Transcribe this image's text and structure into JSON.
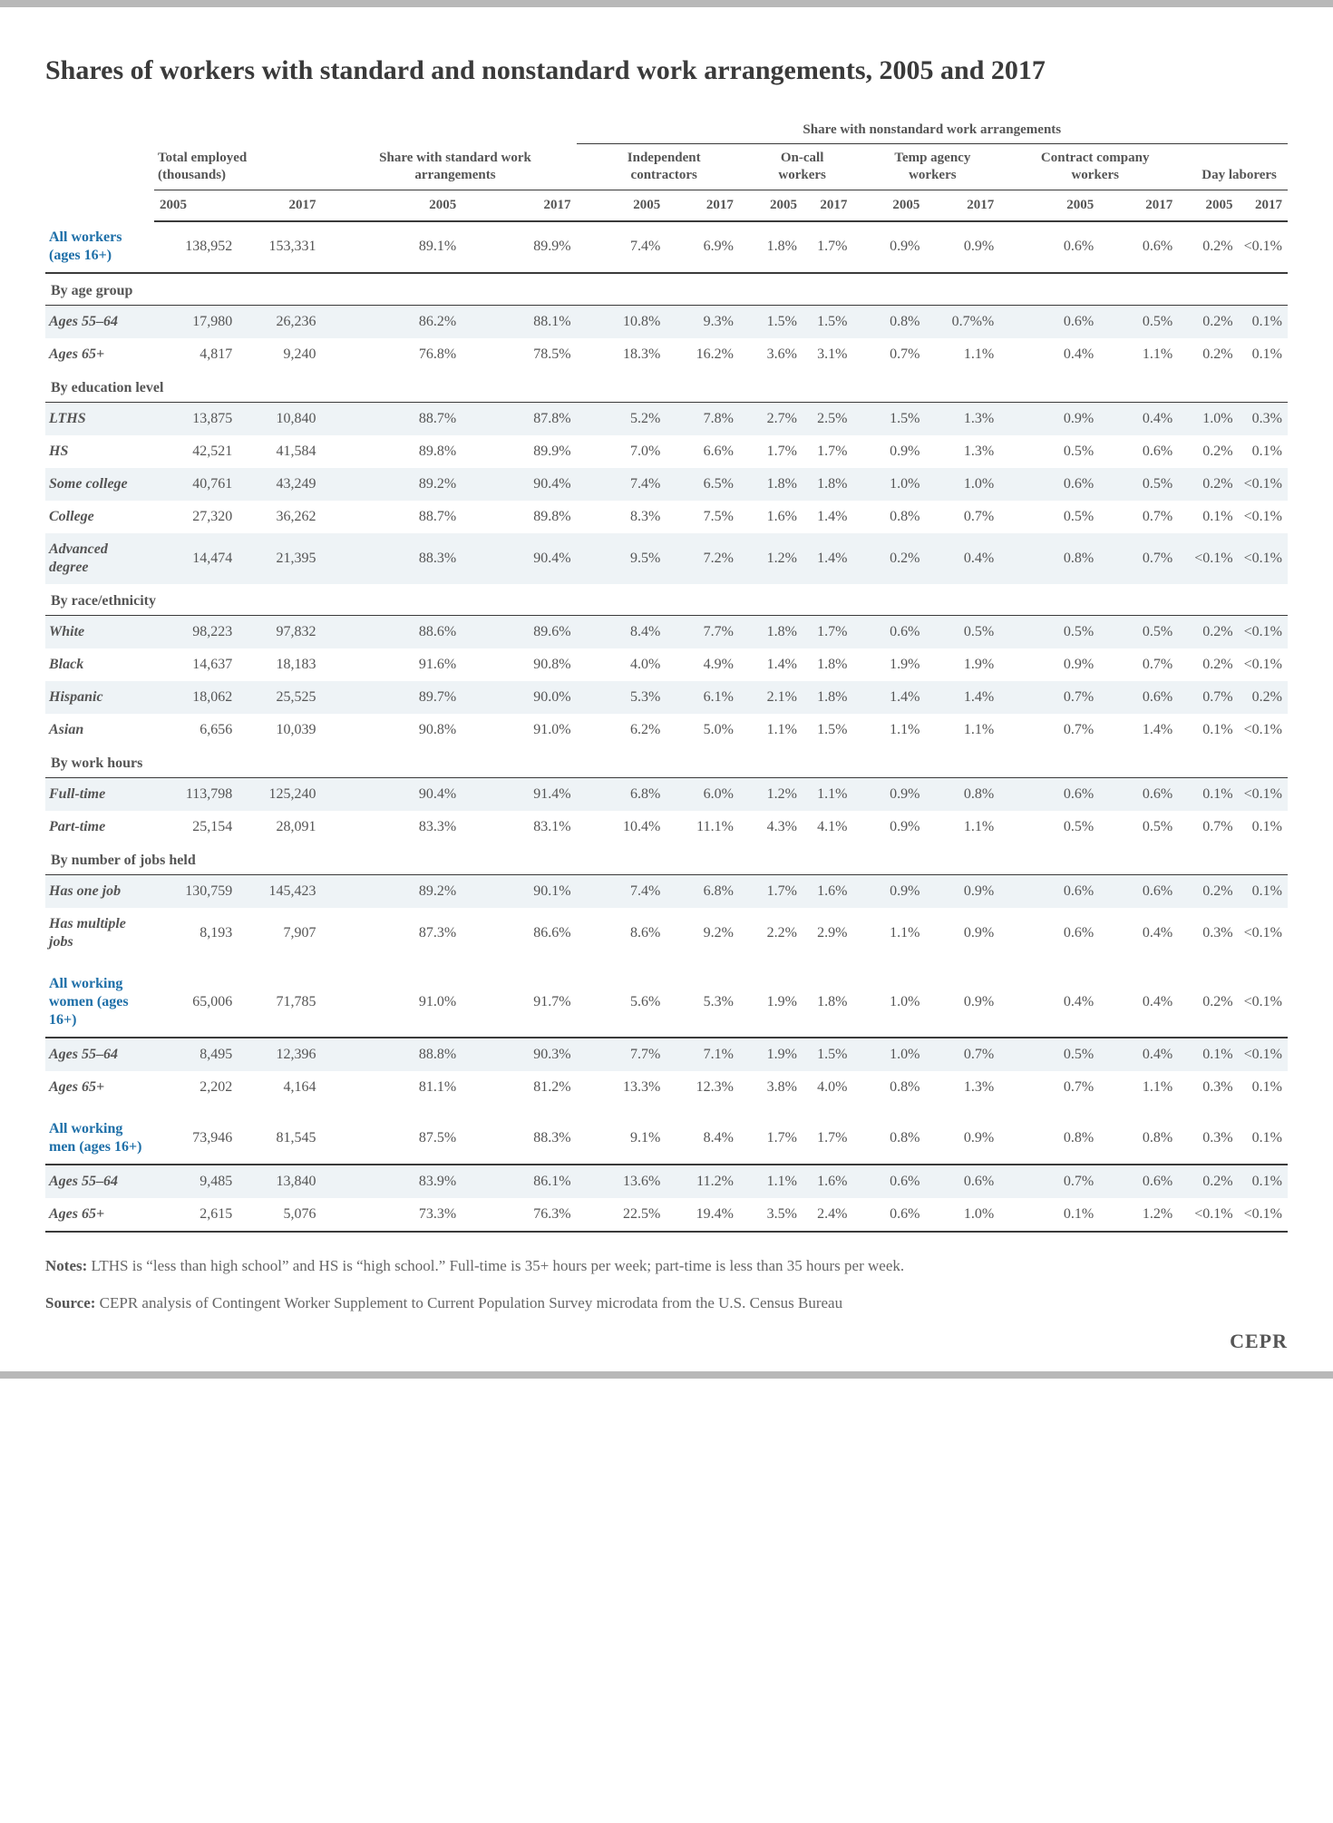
{
  "title": "Shares of workers with standard and nonstandard work arrangements, 2005 and 2017",
  "super_header": "Share with nonstandard work arrangements",
  "groups": [
    {
      "label": "Total employed (thousands)"
    },
    {
      "label": "Share with standard work arrangements"
    },
    {
      "label": "Independent contractors"
    },
    {
      "label": "On-call workers"
    },
    {
      "label": "Temp agency workers"
    },
    {
      "label": "Contract company workers"
    },
    {
      "label": "Day laborers"
    }
  ],
  "years": [
    "2005",
    "2017"
  ],
  "rows": [
    {
      "type": "highlight",
      "label": "All workers (ages 16+)",
      "v": [
        "138,952",
        "153,331",
        "89.1%",
        "89.9%",
        "7.4%",
        "6.9%",
        "1.8%",
        "1.7%",
        "0.9%",
        "0.9%",
        "0.6%",
        "0.6%",
        "0.2%",
        "<0.1%"
      ],
      "shade": false
    },
    {
      "type": "section",
      "label": "By age group"
    },
    {
      "type": "data",
      "label": "Ages 55–64",
      "v": [
        "17,980",
        "26,236",
        "86.2%",
        "88.1%",
        "10.8%",
        "9.3%",
        "1.5%",
        "1.5%",
        "0.8%",
        "0.7%%",
        "0.6%",
        "0.5%",
        "0.2%",
        "0.1%"
      ],
      "shade": true
    },
    {
      "type": "data",
      "label": "Ages 65+",
      "v": [
        "4,817",
        "9,240",
        "76.8%",
        "78.5%",
        "18.3%",
        "16.2%",
        "3.6%",
        "3.1%",
        "0.7%",
        "1.1%",
        "0.4%",
        "1.1%",
        "0.2%",
        "0.1%"
      ],
      "shade": false
    },
    {
      "type": "section",
      "label": "By education level"
    },
    {
      "type": "data",
      "label": "LTHS",
      "v": [
        "13,875",
        "10,840",
        "88.7%",
        "87.8%",
        "5.2%",
        "7.8%",
        "2.7%",
        "2.5%",
        "1.5%",
        "1.3%",
        "0.9%",
        "0.4%",
        "1.0%",
        "0.3%"
      ],
      "shade": true
    },
    {
      "type": "data",
      "label": "HS",
      "v": [
        "42,521",
        "41,584",
        "89.8%",
        "89.9%",
        "7.0%",
        "6.6%",
        "1.7%",
        "1.7%",
        "0.9%",
        "1.3%",
        "0.5%",
        "0.6%",
        "0.2%",
        "0.1%"
      ],
      "shade": false
    },
    {
      "type": "data",
      "label": "Some college",
      "v": [
        "40,761",
        "43,249",
        "89.2%",
        "90.4%",
        "7.4%",
        "6.5%",
        "1.8%",
        "1.8%",
        "1.0%",
        "1.0%",
        "0.6%",
        "0.5%",
        "0.2%",
        "<0.1%"
      ],
      "shade": true
    },
    {
      "type": "data",
      "label": "College",
      "v": [
        "27,320",
        "36,262",
        "88.7%",
        "89.8%",
        "8.3%",
        "7.5%",
        "1.6%",
        "1.4%",
        "0.8%",
        "0.7%",
        "0.5%",
        "0.7%",
        "0.1%",
        "<0.1%"
      ],
      "shade": false
    },
    {
      "type": "data",
      "label": "Advanced degree",
      "v": [
        "14,474",
        "21,395",
        "88.3%",
        "90.4%",
        "9.5%",
        "7.2%",
        "1.2%",
        "1.4%",
        "0.2%",
        "0.4%",
        "0.8%",
        "0.7%",
        "<0.1%",
        "<0.1%"
      ],
      "shade": true
    },
    {
      "type": "section",
      "label": "By race/ethnicity"
    },
    {
      "type": "data",
      "label": "White",
      "v": [
        "98,223",
        "97,832",
        "88.6%",
        "89.6%",
        "8.4%",
        "7.7%",
        "1.8%",
        "1.7%",
        "0.6%",
        "0.5%",
        "0.5%",
        "0.5%",
        "0.2%",
        "<0.1%"
      ],
      "shade": true
    },
    {
      "type": "data",
      "label": "Black",
      "v": [
        "14,637",
        "18,183",
        "91.6%",
        "90.8%",
        "4.0%",
        "4.9%",
        "1.4%",
        "1.8%",
        "1.9%",
        "1.9%",
        "0.9%",
        "0.7%",
        "0.2%",
        "<0.1%"
      ],
      "shade": false
    },
    {
      "type": "data",
      "label": "Hispanic",
      "v": [
        "18,062",
        "25,525",
        "89.7%",
        "90.0%",
        "5.3%",
        "6.1%",
        "2.1%",
        "1.8%",
        "1.4%",
        "1.4%",
        "0.7%",
        "0.6%",
        "0.7%",
        "0.2%"
      ],
      "shade": true
    },
    {
      "type": "data",
      "label": "Asian",
      "v": [
        "6,656",
        "10,039",
        "90.8%",
        "91.0%",
        "6.2%",
        "5.0%",
        "1.1%",
        "1.5%",
        "1.1%",
        "1.1%",
        "0.7%",
        "1.4%",
        "0.1%",
        "<0.1%"
      ],
      "shade": false
    },
    {
      "type": "section",
      "label": "By work hours"
    },
    {
      "type": "data",
      "label": "Full-time",
      "v": [
        "113,798",
        "125,240",
        "90.4%",
        "91.4%",
        "6.8%",
        "6.0%",
        "1.2%",
        "1.1%",
        "0.9%",
        "0.8%",
        "0.6%",
        "0.6%",
        "0.1%",
        "<0.1%"
      ],
      "shade": true
    },
    {
      "type": "data",
      "label": "Part-time",
      "v": [
        "25,154",
        "28,091",
        "83.3%",
        "83.1%",
        "10.4%",
        "11.1%",
        "4.3%",
        "4.1%",
        "0.9%",
        "1.1%",
        "0.5%",
        "0.5%",
        "0.7%",
        "0.1%"
      ],
      "shade": false
    },
    {
      "type": "section",
      "label": "By number of jobs held"
    },
    {
      "type": "data",
      "label": "Has one job",
      "v": [
        "130,759",
        "145,423",
        "89.2%",
        "90.1%",
        "7.4%",
        "6.8%",
        "1.7%",
        "1.6%",
        "0.9%",
        "0.9%",
        "0.6%",
        "0.6%",
        "0.2%",
        "0.1%"
      ],
      "shade": true
    },
    {
      "type": "data",
      "label": "Has multiple jobs",
      "v": [
        "8,193",
        "7,907",
        "87.3%",
        "86.6%",
        "8.6%",
        "9.2%",
        "2.2%",
        "2.9%",
        "1.1%",
        "0.9%",
        "0.6%",
        "0.4%",
        "0.3%",
        "<0.1%"
      ],
      "shade": false
    },
    {
      "type": "gap"
    },
    {
      "type": "highlight",
      "label": "All working women (ages 16+)",
      "v": [
        "65,006",
        "71,785",
        "91.0%",
        "91.7%",
        "5.6%",
        "5.3%",
        "1.9%",
        "1.8%",
        "1.0%",
        "0.9%",
        "0.4%",
        "0.4%",
        "0.2%",
        "<0.1%"
      ],
      "shade": false
    },
    {
      "type": "data",
      "label": "Ages 55–64",
      "v": [
        "8,495",
        "12,396",
        "88.8%",
        "90.3%",
        "7.7%",
        "7.1%",
        "1.9%",
        "1.5%",
        "1.0%",
        "0.7%",
        "0.5%",
        "0.4%",
        "0.1%",
        "<0.1%"
      ],
      "shade": true
    },
    {
      "type": "data",
      "label": "Ages 65+",
      "v": [
        "2,202",
        "4,164",
        "81.1%",
        "81.2%",
        "13.3%",
        "12.3%",
        "3.8%",
        "4.0%",
        "0.8%",
        "1.3%",
        "0.7%",
        "1.1%",
        "0.3%",
        "0.1%"
      ],
      "shade": false
    },
    {
      "type": "gap"
    },
    {
      "type": "highlight",
      "label": "All working men (ages 16+)",
      "v": [
        "73,946",
        "81,545",
        "87.5%",
        "88.3%",
        "9.1%",
        "8.4%",
        "1.7%",
        "1.7%",
        "0.8%",
        "0.9%",
        "0.8%",
        "0.8%",
        "0.3%",
        "0.1%"
      ],
      "shade": false
    },
    {
      "type": "data",
      "label": "Ages 55–64",
      "v": [
        "9,485",
        "13,840",
        "83.9%",
        "86.1%",
        "13.6%",
        "11.2%",
        "1.1%",
        "1.6%",
        "0.6%",
        "0.6%",
        "0.7%",
        "0.6%",
        "0.2%",
        "0.1%"
      ],
      "shade": true
    },
    {
      "type": "data",
      "label": "Ages 65+",
      "v": [
        "2,615",
        "5,076",
        "73.3%",
        "76.3%",
        "22.5%",
        "19.4%",
        "3.5%",
        "2.4%",
        "0.6%",
        "1.0%",
        "0.1%",
        "1.2%",
        "<0.1%",
        "<0.1%"
      ],
      "shade": false,
      "last": true
    }
  ],
  "notes_label": "Notes:",
  "notes_text": " LTHS is “less than high school” and HS is “high school.” Full-time is 35+ hours per week; part-time is less than 35 hours per week.",
  "source_label": "Source:",
  "source_text": " CEPR analysis of Contingent Worker Supplement to Current Population Survey microdata from the U.S. Census Bureau",
  "footer_logo": "CEPR",
  "colors": {
    "accent": "#1e6fa8",
    "text": "#555555",
    "shade": "#eef3f6",
    "border_bar": "#b8b8b8",
    "rule": "#3a3a3a"
  }
}
